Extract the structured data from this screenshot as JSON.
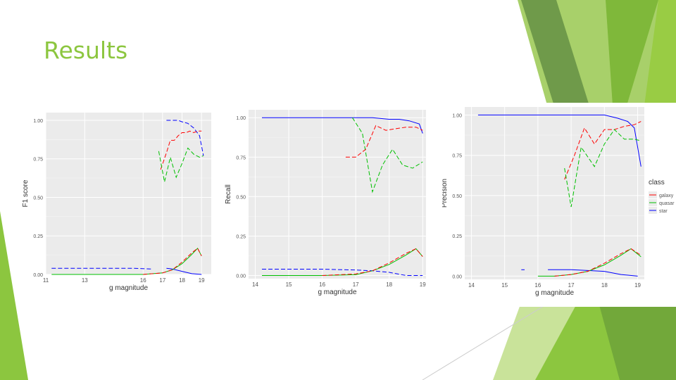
{
  "slide": {
    "title": "Results",
    "accent_color": "#8cc63f"
  },
  "chart_data": [
    {
      "type": "line",
      "ylabel": "F1 score",
      "xlabel": "g magnitude",
      "xlim": [
        11,
        19.5
      ],
      "ylim": [
        0,
        1.05
      ],
      "xticks": [
        11,
        13,
        16,
        17,
        18,
        19
      ],
      "xtick_labels": [
        "11",
        "13",
        "16",
        "17",
        "18",
        "19"
      ],
      "yticks": [
        0,
        0.25,
        0.5,
        0.75,
        1.0
      ],
      "ytick_labels": [
        "0.00",
        "0.25",
        "0.50",
        "0.75",
        "1.00"
      ],
      "grid": true,
      "series": [
        {
          "color": "#0000ff",
          "style": "dash",
          "points": [
            [
              11.3,
              0.04
            ],
            [
              12,
              0.04
            ],
            [
              14,
              0.04
            ],
            [
              15.5,
              0.04
            ],
            [
              16.5,
              0.035
            ]
          ]
        },
        {
          "color": "#0000ff",
          "style": "solid",
          "points": [
            [
              17.2,
              0.04
            ],
            [
              17.5,
              0.035
            ],
            [
              18,
              0.02
            ],
            [
              18.5,
              0.005
            ],
            [
              19,
              0.0
            ]
          ]
        },
        {
          "color": "#0000ff",
          "style": "dash",
          "points": [
            [
              17.2,
              1.0
            ],
            [
              17.5,
              1.0
            ],
            [
              17.8,
              1.0
            ],
            [
              18,
              0.99
            ],
            [
              18.3,
              0.98
            ],
            [
              18.6,
              0.95
            ],
            [
              18.9,
              0.9
            ],
            [
              19.1,
              0.77
            ]
          ]
        },
        {
          "color": "#ff0000",
          "style": "dash",
          "points": [
            [
              16.9,
              0.68
            ],
            [
              17.2,
              0.79
            ],
            [
              17.4,
              0.87
            ],
            [
              17.6,
              0.87
            ],
            [
              17.8,
              0.9
            ],
            [
              18,
              0.92
            ],
            [
              18.2,
              0.92
            ],
            [
              18.4,
              0.93
            ],
            [
              18.6,
              0.92
            ],
            [
              18.8,
              0.93
            ],
            [
              19,
              0.93
            ]
          ]
        },
        {
          "color": "#00c000",
          "style": "dash",
          "points": [
            [
              16.8,
              0.8
            ],
            [
              17.1,
              0.6
            ],
            [
              17.4,
              0.76
            ],
            [
              17.7,
              0.63
            ],
            [
              18,
              0.72
            ],
            [
              18.3,
              0.82
            ],
            [
              18.6,
              0.78
            ],
            [
              18.9,
              0.76
            ],
            [
              19.1,
              0.77
            ]
          ]
        },
        {
          "color": "#00c000",
          "style": "solid",
          "points": [
            [
              11.3,
              0.0
            ],
            [
              13,
              0.0
            ],
            [
              16,
              0.0
            ],
            [
              17,
              0.01
            ],
            [
              17.5,
              0.03
            ],
            [
              18,
              0.07
            ],
            [
              18.5,
              0.13
            ],
            [
              18.8,
              0.17
            ],
            [
              19,
              0.12
            ]
          ]
        },
        {
          "color": "#ff0000",
          "style": "dash",
          "points": [
            [
              16,
              0.0
            ],
            [
              17,
              0.01
            ],
            [
              17.5,
              0.03
            ],
            [
              18,
              0.08
            ],
            [
              18.5,
              0.14
            ],
            [
              18.8,
              0.17
            ],
            [
              19,
              0.12
            ]
          ]
        }
      ]
    },
    {
      "type": "line",
      "ylabel": "Recall",
      "xlabel": "g magnitude",
      "xlim": [
        13.8,
        19.1
      ],
      "ylim": [
        -0.02,
        1.05
      ],
      "xticks": [
        14,
        15,
        16,
        17,
        18,
        19
      ],
      "xtick_labels": [
        "14",
        "15",
        "16",
        "17",
        "18",
        "19"
      ],
      "yticks": [
        0,
        0.25,
        0.5,
        0.75,
        1.0
      ],
      "ytick_labels": [
        "0.00",
        "0.25",
        "0.50",
        "0.75",
        "1.00"
      ],
      "grid": true,
      "series": [
        {
          "color": "#0000ff",
          "style": "solid",
          "points": [
            [
              14.2,
              1.0
            ],
            [
              14.5,
              1.0
            ],
            [
              16,
              1.0
            ],
            [
              17,
              1.0
            ],
            [
              17.5,
              1.0
            ],
            [
              18,
              0.99
            ],
            [
              18.3,
              0.99
            ],
            [
              18.6,
              0.98
            ],
            [
              18.9,
              0.96
            ],
            [
              19,
              0.9
            ]
          ]
        },
        {
          "color": "#00c000",
          "style": "dash",
          "points": [
            [
              16.9,
              1.0
            ],
            [
              17.2,
              0.9
            ],
            [
              17.5,
              0.53
            ],
            [
              17.8,
              0.7
            ],
            [
              18.1,
              0.8
            ],
            [
              18.4,
              0.7
            ],
            [
              18.7,
              0.68
            ],
            [
              19,
              0.72
            ]
          ]
        },
        {
          "color": "#ff0000",
          "style": "dash",
          "points": [
            [
              16.7,
              0.75
            ],
            [
              17,
              0.75
            ],
            [
              17.3,
              0.8
            ],
            [
              17.6,
              0.95
            ],
            [
              17.9,
              0.92
            ],
            [
              18.2,
              0.93
            ],
            [
              18.5,
              0.94
            ],
            [
              18.8,
              0.94
            ],
            [
              19,
              0.92
            ]
          ]
        },
        {
          "color": "#0000ff",
          "style": "dash",
          "points": [
            [
              14.2,
              0.04
            ],
            [
              15,
              0.04
            ],
            [
              16,
              0.04
            ],
            [
              17,
              0.035
            ],
            [
              17.5,
              0.03
            ],
            [
              18,
              0.02
            ],
            [
              18.5,
              0.0
            ],
            [
              19,
              0.0
            ]
          ]
        },
        {
          "color": "#00c000",
          "style": "solid",
          "points": [
            [
              14.2,
              0.0
            ],
            [
              15,
              0.0
            ],
            [
              16,
              0.0
            ],
            [
              17,
              0.005
            ],
            [
              17.5,
              0.03
            ],
            [
              18,
              0.07
            ],
            [
              18.5,
              0.13
            ],
            [
              18.8,
              0.17
            ],
            [
              19,
              0.12
            ]
          ]
        },
        {
          "color": "#ff0000",
          "style": "dash",
          "points": [
            [
              16,
              0.0
            ],
            [
              17,
              0.01
            ],
            [
              17.5,
              0.03
            ],
            [
              18,
              0.08
            ],
            [
              18.5,
              0.14
            ],
            [
              18.8,
              0.17
            ],
            [
              19,
              0.12
            ]
          ]
        }
      ]
    },
    {
      "type": "line",
      "ylabel": "Precision",
      "xlabel": "g magnitude",
      "xlim": [
        13.8,
        19.2
      ],
      "ylim": [
        -0.02,
        1.05
      ],
      "xticks": [
        14,
        15,
        16,
        17,
        18,
        19
      ],
      "xtick_labels": [
        "14",
        "15",
        "16",
        "17",
        "18",
        "19"
      ],
      "yticks": [
        0,
        0.25,
        0.5,
        0.75,
        1.0
      ],
      "ytick_labels": [
        "0.00",
        "0.25",
        "0.50",
        "0.75",
        "1.00"
      ],
      "grid": true,
      "legend": {
        "title": "class",
        "position": "right",
        "entries": [
          {
            "label": "galaxy",
            "color": "#ff0000"
          },
          {
            "label": "quasar",
            "color": "#00c000"
          },
          {
            "label": "star",
            "color": "#0000ff"
          }
        ]
      },
      "series": [
        {
          "color": "#0000ff",
          "style": "solid",
          "points": [
            [
              14.2,
              1.0
            ],
            [
              15,
              1.0
            ],
            [
              16,
              1.0
            ],
            [
              17,
              1.0
            ],
            [
              17.5,
              1.0
            ],
            [
              18,
              1.0
            ],
            [
              18.4,
              0.98
            ],
            [
              18.7,
              0.96
            ],
            [
              18.9,
              0.92
            ],
            [
              19.1,
              0.68
            ]
          ]
        },
        {
          "color": "#ff0000",
          "style": "dash",
          "points": [
            [
              16.8,
              0.6
            ],
            [
              17.1,
              0.75
            ],
            [
              17.4,
              0.92
            ],
            [
              17.7,
              0.82
            ],
            [
              18,
              0.91
            ],
            [
              18.3,
              0.91
            ],
            [
              18.6,
              0.93
            ],
            [
              18.9,
              0.94
            ],
            [
              19.1,
              0.96
            ]
          ]
        },
        {
          "color": "#00c000",
          "style": "dash",
          "points": [
            [
              16.8,
              0.67
            ],
            [
              17,
              0.43
            ],
            [
              17.3,
              0.8
            ],
            [
              17.7,
              0.68
            ],
            [
              18,
              0.82
            ],
            [
              18.3,
              0.91
            ],
            [
              18.6,
              0.85
            ],
            [
              18.9,
              0.85
            ],
            [
              19.1,
              0.84
            ]
          ]
        },
        {
          "color": "#0000ff",
          "style": "dash",
          "points": [
            [
              15.5,
              0.04
            ],
            [
              15.6,
              0.04
            ]
          ]
        },
        {
          "color": "#0000ff",
          "style": "solid",
          "points": [
            [
              16.3,
              0.04
            ],
            [
              17,
              0.04
            ],
            [
              17.5,
              0.035
            ],
            [
              18,
              0.03
            ],
            [
              18.5,
              0.01
            ],
            [
              19,
              0.0
            ]
          ]
        },
        {
          "color": "#00c000",
          "style": "solid",
          "points": [
            [
              16,
              0.0
            ],
            [
              16.5,
              0.0
            ],
            [
              17,
              0.01
            ],
            [
              17.5,
              0.03
            ],
            [
              18,
              0.07
            ],
            [
              18.5,
              0.13
            ],
            [
              18.8,
              0.17
            ],
            [
              19.1,
              0.12
            ]
          ]
        },
        {
          "color": "#ff0000",
          "style": "dash",
          "points": [
            [
              16.5,
              0.0
            ],
            [
              17,
              0.01
            ],
            [
              17.5,
              0.03
            ],
            [
              18,
              0.08
            ],
            [
              18.5,
              0.14
            ],
            [
              18.8,
              0.17
            ],
            [
              19.1,
              0.13
            ]
          ]
        }
      ]
    }
  ]
}
